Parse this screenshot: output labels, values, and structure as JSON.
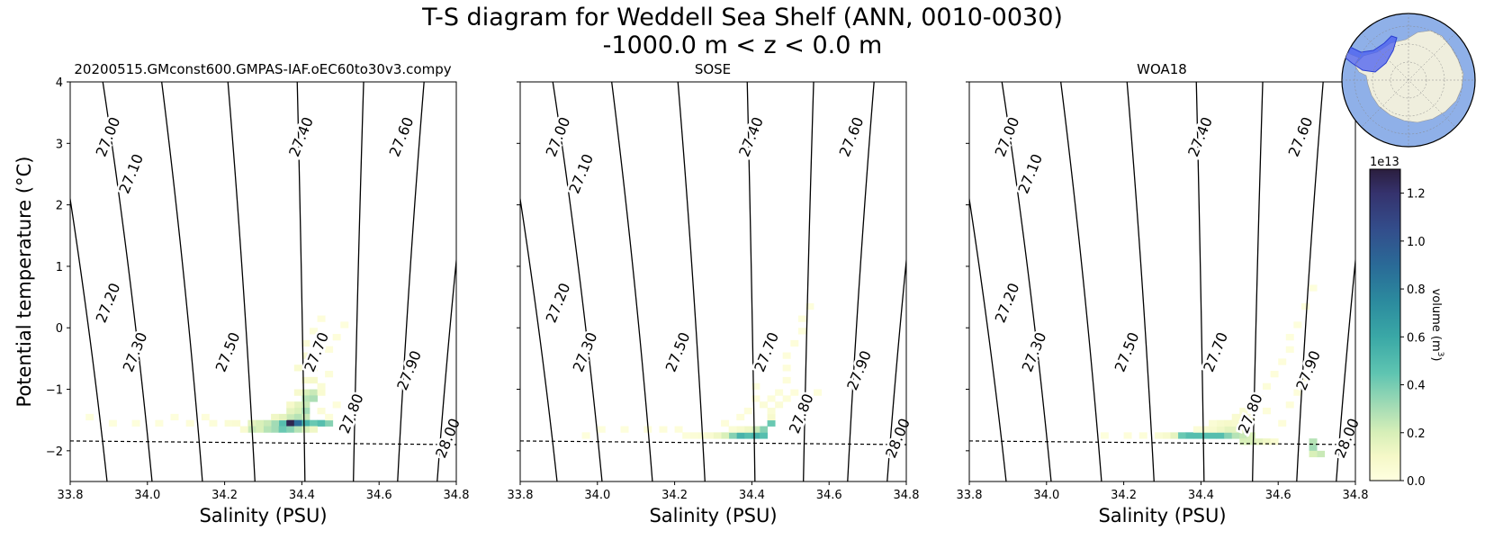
{
  "figure": {
    "title_line1": "T-S diagram for Weddell Sea Shelf (ANN, 0010-0030)",
    "title_line2": "-1000.0 m < z < 0.0 m"
  },
  "chart_data": {
    "type": "heatmap",
    "xlabel": "Salinity (PSU)",
    "ylabel": "Potential temperature ($^\\circ$C)",
    "ylabel_text": "Potential temperature (",
    "ylabel_unit": "°C)",
    "xlim": [
      33.8,
      34.8
    ],
    "ylim": [
      -2.5,
      4.0
    ],
    "xticks": [
      33.8,
      34.0,
      34.2,
      34.4,
      34.6,
      34.8
    ],
    "xtick_labels": [
      "33.8",
      "34.0",
      "34.2",
      "34.4",
      "34.6",
      "34.8"
    ],
    "yticks": [
      -2,
      -1,
      0,
      1,
      2,
      3,
      4
    ],
    "ytick_labels": [
      "−2",
      "−1",
      "0",
      "1",
      "2",
      "3",
      "4"
    ],
    "freezing_line": {
      "style": "dashed",
      "s": [
        33.8,
        34.8
      ],
      "t": [
        -1.84,
        -1.9
      ]
    },
    "density_contours": {
      "levels": [
        27.0,
        27.1,
        27.2,
        27.3,
        27.4,
        27.5,
        27.6,
        27.7,
        27.8,
        27.9,
        28.0
      ],
      "labels": [
        "27.00",
        "27.10",
        "27.20",
        "27.30",
        "27.40",
        "27.50",
        "27.60",
        "27.70",
        "27.80",
        "27.90",
        "28.00"
      ],
      "bottom_salinity": [
        33.795,
        33.8955,
        34.012,
        34.1425,
        34.2785,
        34.408,
        34.5335,
        34.648,
        34.7505,
        34.8405,
        34.9205
      ],
      "top_salinity": [
        33.6385,
        33.751,
        33.8845,
        34.037,
        34.2085,
        34.388,
        34.56,
        34.7165,
        34.85,
        34.965,
        35.06
      ],
      "labels_upper": [
        {
          "label": "27.00",
          "s": 33.9,
          "t": 3.1
        },
        {
          "label": "27.10",
          "s": 33.96,
          "t": 2.5
        },
        {
          "label": "27.40",
          "s": 34.4,
          "t": 3.1
        },
        {
          "label": "27.60",
          "s": 34.66,
          "t": 3.1
        }
      ],
      "labels_lower": [
        {
          "label": "27.20",
          "s": 33.9,
          "t": 0.4
        },
        {
          "label": "27.30",
          "s": 33.97,
          "t": -0.4
        },
        {
          "label": "27.50",
          "s": 34.21,
          "t": -0.4
        },
        {
          "label": "27.70",
          "s": 34.44,
          "t": -0.4
        },
        {
          "label": "27.80",
          "s": 34.53,
          "t": -1.4
        },
        {
          "label": "27.90",
          "s": 34.68,
          "t": -0.7
        },
        {
          "label": "28.00",
          "s": 34.78,
          "t": -1.8
        }
      ]
    },
    "colorbar": {
      "label": "volume (m",
      "label_sup": "3",
      "label_close": ")",
      "multiplier": "1e13",
      "ticks": [
        0.0,
        0.2,
        0.4,
        0.6,
        0.8,
        1.0,
        1.2
      ],
      "tick_labels": [
        "0.0",
        "0.2",
        "0.4",
        "0.6",
        "0.8",
        "1.0",
        "1.2"
      ],
      "vmax": 1.3,
      "colors": [
        "#ffffe0",
        "#f5f8c8",
        "#d7efb8",
        "#a8ddb5",
        "#5ec4b1",
        "#3aa8a6",
        "#2b8a9e",
        "#2a6a97",
        "#334d8b",
        "#35326d",
        "#2b1e3e"
      ]
    },
    "panels": [
      {
        "title": "20200515.GMconst600.GMPAS-IAF.oEC60to30v3.compy",
        "volume_1e13": {
          "ds": 0.02,
          "dt": 0.1,
          "cells": [
            [
              34.44,
              0.1,
              0.03
            ],
            [
              34.42,
              -0.1,
              0.04
            ],
            [
              34.4,
              -0.3,
              0.05
            ],
            [
              34.4,
              -0.5,
              0.07
            ],
            [
              34.38,
              -0.7,
              0.08
            ],
            [
              34.42,
              -0.7,
              0.06
            ],
            [
              34.4,
              -0.9,
              0.1
            ],
            [
              34.42,
              -0.9,
              0.12
            ],
            [
              34.4,
              -1.1,
              0.25
            ],
            [
              34.42,
              -1.1,
              0.3
            ],
            [
              34.38,
              -1.1,
              0.1
            ],
            [
              34.44,
              -1.1,
              0.08
            ],
            [
              34.4,
              -1.2,
              0.35
            ],
            [
              34.42,
              -1.2,
              0.38
            ],
            [
              34.38,
              -1.3,
              0.2
            ],
            [
              34.4,
              -1.3,
              0.3
            ],
            [
              34.38,
              -1.4,
              0.25
            ],
            [
              34.4,
              -1.4,
              0.4
            ],
            [
              34.36,
              -1.5,
              0.3
            ],
            [
              34.38,
              -1.5,
              0.35
            ],
            [
              34.4,
              -1.5,
              0.3
            ],
            [
              34.34,
              -1.6,
              0.55
            ],
            [
              34.36,
              -1.6,
              1.25
            ],
            [
              34.38,
              -1.6,
              0.9
            ],
            [
              34.4,
              -1.6,
              0.6
            ],
            [
              34.42,
              -1.6,
              0.5
            ],
            [
              34.44,
              -1.6,
              0.55
            ],
            [
              34.46,
              -1.6,
              0.45
            ],
            [
              34.32,
              -1.6,
              0.4
            ],
            [
              34.3,
              -1.6,
              0.3
            ],
            [
              34.28,
              -1.6,
              0.25
            ],
            [
              34.26,
              -1.6,
              0.2
            ],
            [
              34.32,
              -1.7,
              0.4
            ],
            [
              34.3,
              -1.7,
              0.35
            ],
            [
              34.34,
              -1.7,
              0.5
            ],
            [
              34.36,
              -1.7,
              0.45
            ],
            [
              34.38,
              -1.7,
              0.35
            ],
            [
              34.4,
              -1.7,
              0.25
            ],
            [
              34.42,
              -1.7,
              0.15
            ],
            [
              34.28,
              -1.7,
              0.25
            ],
            [
              34.26,
              -1.7,
              0.3
            ],
            [
              34.24,
              -1.7,
              0.08
            ],
            [
              34.34,
              -1.5,
              0.2
            ],
            [
              34.32,
              -1.5,
              0.15
            ],
            [
              34.36,
              -1.4,
              0.2
            ],
            [
              34.36,
              -1.3,
              0.12
            ],
            [
              34.44,
              -1.0,
              0.06
            ],
            [
              34.46,
              -0.8,
              0.04
            ],
            [
              34.46,
              -0.4,
              0.03
            ],
            [
              34.48,
              -0.2,
              0.03
            ],
            [
              34.5,
              0.0,
              0.02
            ],
            [
              34.44,
              -1.4,
              0.05
            ],
            [
              34.46,
              -1.5,
              0.04
            ],
            [
              34.2,
              -1.6,
              0.06
            ],
            [
              34.16,
              -1.6,
              0.04
            ],
            [
              34.1,
              -1.6,
              0.03
            ],
            [
              34.02,
              -1.6,
              0.02
            ],
            [
              33.96,
              -1.6,
              0.02
            ],
            [
              33.9,
              -1.6,
              0.02
            ],
            [
              33.84,
              -1.5,
              0.02
            ],
            [
              34.22,
              -1.6,
              0.07
            ],
            [
              34.14,
              -1.5,
              0.03
            ],
            [
              34.06,
              -1.5,
              0.02
            ],
            [
              34.48,
              -1.3,
              0.03
            ]
          ]
        }
      },
      {
        "title": "SOSE",
        "volume_1e13": {
          "ds": 0.02,
          "dt": 0.1,
          "cells": [
            [
              34.38,
              -1.8,
              0.55
            ],
            [
              34.36,
              -1.8,
              0.6
            ],
            [
              34.34,
              -1.8,
              0.45
            ],
            [
              34.4,
              -1.8,
              0.6
            ],
            [
              34.42,
              -1.8,
              0.55
            ],
            [
              34.32,
              -1.8,
              0.25
            ],
            [
              34.3,
              -1.8,
              0.15
            ],
            [
              34.42,
              -1.7,
              0.45
            ],
            [
              34.44,
              -1.6,
              0.5
            ],
            [
              34.4,
              -1.7,
              0.3
            ],
            [
              34.38,
              -1.7,
              0.15
            ],
            [
              34.36,
              -1.7,
              0.1
            ],
            [
              34.34,
              -1.7,
              0.06
            ],
            [
              34.44,
              -1.5,
              0.1
            ],
            [
              34.44,
              -1.4,
              0.06
            ],
            [
              34.42,
              -1.3,
              0.05
            ],
            [
              34.44,
              -1.2,
              0.04
            ],
            [
              34.46,
              -1.1,
              0.04
            ],
            [
              34.48,
              -0.9,
              0.03
            ],
            [
              34.48,
              -0.7,
              0.03
            ],
            [
              34.48,
              -0.5,
              0.03
            ],
            [
              34.5,
              -0.3,
              0.03
            ],
            [
              34.52,
              -0.1,
              0.02
            ],
            [
              34.52,
              0.1,
              0.02
            ],
            [
              34.54,
              0.3,
              0.02
            ],
            [
              34.28,
              -1.8,
              0.08
            ],
            [
              34.26,
              -1.8,
              0.06
            ],
            [
              34.24,
              -1.8,
              0.05
            ],
            [
              34.22,
              -1.8,
              0.04
            ],
            [
              34.2,
              -1.7,
              0.03
            ],
            [
              34.16,
              -1.7,
              0.03
            ],
            [
              34.12,
              -1.7,
              0.02
            ],
            [
              34.06,
              -1.7,
              0.02
            ],
            [
              34.0,
              -1.7,
              0.02
            ],
            [
              33.96,
              -1.8,
              0.02
            ],
            [
              34.32,
              -1.6,
              0.03
            ],
            [
              34.36,
              -1.5,
              0.03
            ],
            [
              34.38,
              -1.4,
              0.03
            ],
            [
              34.4,
              -1.2,
              0.03
            ],
            [
              34.4,
              -1.0,
              0.02
            ],
            [
              34.46,
              -1.3,
              0.05
            ],
            [
              34.48,
              -1.2,
              0.04
            ],
            [
              34.5,
              -1.1,
              0.03
            ],
            [
              34.56,
              -1.1,
              0.02
            ]
          ]
        }
      },
      {
        "title": "WOA18",
        "volume_1e13": {
          "ds": 0.02,
          "dt": 0.1,
          "cells": [
            [
              34.36,
              -1.8,
              0.55
            ],
            [
              34.38,
              -1.8,
              0.55
            ],
            [
              34.4,
              -1.8,
              0.55
            ],
            [
              34.42,
              -1.8,
              0.55
            ],
            [
              34.44,
              -1.8,
              0.55
            ],
            [
              34.46,
              -1.8,
              0.45
            ],
            [
              34.34,
              -1.8,
              0.5
            ],
            [
              34.48,
              -1.8,
              0.35
            ],
            [
              34.5,
              -1.8,
              0.3
            ],
            [
              34.52,
              -1.8,
              0.25
            ],
            [
              34.32,
              -1.8,
              0.2
            ],
            [
              34.54,
              -1.9,
              0.2
            ],
            [
              34.56,
              -1.9,
              0.15
            ],
            [
              34.52,
              -1.9,
              0.25
            ],
            [
              34.5,
              -1.9,
              0.25
            ],
            [
              34.46,
              -1.7,
              0.2
            ],
            [
              34.44,
              -1.7,
              0.15
            ],
            [
              34.48,
              -1.7,
              0.2
            ],
            [
              34.5,
              -1.7,
              0.15
            ],
            [
              34.42,
              -1.7,
              0.1
            ],
            [
              34.4,
              -1.7,
              0.08
            ],
            [
              34.38,
              -1.7,
              0.05
            ],
            [
              34.44,
              -1.6,
              0.1
            ],
            [
              34.46,
              -1.6,
              0.12
            ],
            [
              34.48,
              -1.6,
              0.1
            ],
            [
              34.42,
              -1.6,
              0.06
            ],
            [
              34.48,
              -1.5,
              0.08
            ],
            [
              34.5,
              -1.5,
              0.08
            ],
            [
              34.52,
              -1.5,
              0.07
            ],
            [
              34.5,
              -1.4,
              0.06
            ],
            [
              34.52,
              -1.3,
              0.05
            ],
            [
              34.54,
              -1.2,
              0.04
            ],
            [
              34.56,
              -1.0,
              0.04
            ],
            [
              34.58,
              -0.8,
              0.03
            ],
            [
              34.6,
              -0.6,
              0.03
            ],
            [
              34.62,
              -0.4,
              0.02
            ],
            [
              34.62,
              -0.2,
              0.02
            ],
            [
              34.64,
              0.0,
              0.02
            ],
            [
              34.68,
              -2.0,
              0.4
            ],
            [
              34.68,
              -1.9,
              0.35
            ],
            [
              34.7,
              -2.1,
              0.3
            ],
            [
              34.68,
              -2.1,
              0.25
            ],
            [
              34.3,
              -1.8,
              0.1
            ],
            [
              34.28,
              -1.8,
              0.06
            ],
            [
              34.24,
              -1.8,
              0.04
            ],
            [
              34.2,
              -1.8,
              0.03
            ],
            [
              34.14,
              -1.8,
              0.02
            ],
            [
              34.58,
              -1.9,
              0.08
            ],
            [
              34.6,
              -1.6,
              0.03
            ],
            [
              34.62,
              -1.3,
              0.03
            ],
            [
              34.64,
              -1.1,
              0.03
            ],
            [
              34.66,
              -0.9,
              0.02
            ],
            [
              34.56,
              -1.4,
              0.03
            ],
            [
              34.66,
              0.3,
              0.02
            ],
            [
              34.68,
              0.6,
              0.02
            ]
          ]
        }
      }
    ]
  },
  "inset_map": {
    "region": "Weddell Sea Shelf",
    "region_color": "#4a5ef0",
    "ocean_color": "#8fb0e8",
    "land_color": "#efeedd"
  }
}
